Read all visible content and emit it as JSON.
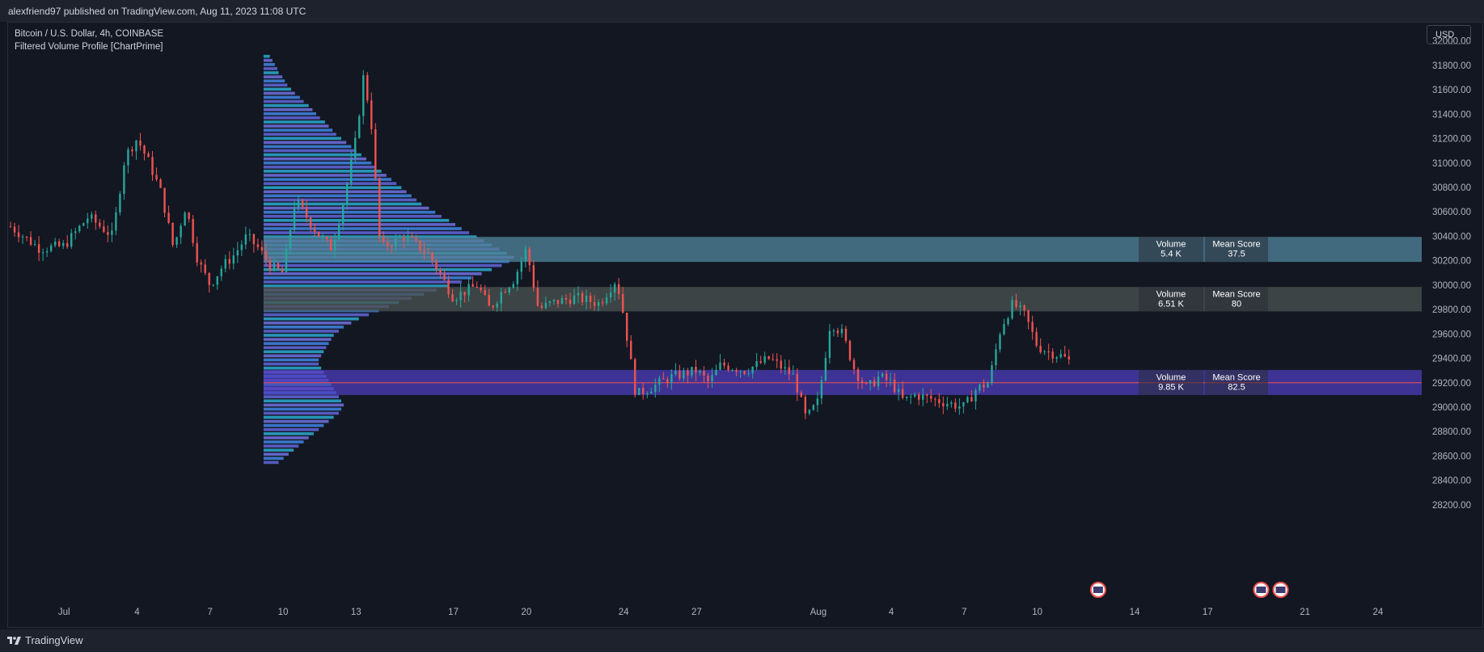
{
  "header": {
    "published_text": "alexfriend97 published on TradingView.com, Aug 11, 2023 11:08 UTC"
  },
  "legend": {
    "symbol_line": "Bitcoin / U.S. Dollar, 4h, COINBASE",
    "indicator_line": "Filtered Volume Profile [ChartPrime]"
  },
  "currency_button": "USD",
  "footer": {
    "brand": "TradingView",
    "logo_icon": "tradingview-logo-icon"
  },
  "colors": {
    "up": "#26a69a",
    "down": "#ef5350",
    "background": "#131722",
    "zone_top": "#4e8198",
    "zone_mid": "#49514f",
    "zone_low": "#4f3ec0",
    "poc_line": "#ef5350"
  },
  "chart_data": {
    "type": "candlestick",
    "title": "Bitcoin / U.S. Dollar, 4h, COINBASE",
    "indicator": "Filtered Volume Profile [ChartPrime]",
    "ylim": [
      28100,
      32150
    ],
    "y_ticks": [
      32000,
      31800,
      31600,
      31400,
      31200,
      31000,
      30800,
      30600,
      30400,
      30200,
      30000,
      29800,
      29600,
      29400,
      29200,
      29000,
      28800,
      28600,
      28400,
      28200
    ],
    "y_tick_labels": [
      "32000.00",
      "31800.00",
      "31600.00",
      "31400.00",
      "31200.00",
      "31000.00",
      "30800.00",
      "30600.00",
      "30400.00",
      "30200.00",
      "30000.00",
      "29800.00",
      "29600.00",
      "29400.00",
      "29200.00",
      "29000.00",
      "28800.00",
      "28600.00",
      "28400.00",
      "28200.00"
    ],
    "x_ticks": [
      {
        "day": 1,
        "label": "Jul"
      },
      {
        "day": 4,
        "label": "4"
      },
      {
        "day": 7,
        "label": "7"
      },
      {
        "day": 10,
        "label": "10"
      },
      {
        "day": 13,
        "label": "13"
      },
      {
        "day": 17,
        "label": "17"
      },
      {
        "day": 20,
        "label": "20"
      },
      {
        "day": 24,
        "label": "24"
      },
      {
        "day": 27,
        "label": "27"
      },
      {
        "day": 32,
        "label": "Aug"
      },
      {
        "day": 35,
        "label": "4"
      },
      {
        "day": 38,
        "label": "7"
      },
      {
        "day": 41,
        "label": "10"
      },
      {
        "day": 45,
        "label": "14"
      },
      {
        "day": 48,
        "label": "17"
      },
      {
        "day": 52,
        "label": "21"
      },
      {
        "day": 55,
        "label": "24"
      }
    ],
    "xlim_days": [
      -1.3,
      56.8
    ],
    "key_closes": [
      [
        -1.2,
        30480
      ],
      [
        0,
        30300
      ],
      [
        1,
        30320
      ],
      [
        2,
        30560
      ],
      [
        3,
        30400
      ],
      [
        3.5,
        31050
      ],
      [
        4,
        31200
      ],
      [
        4.5,
        31000
      ],
      [
        5,
        30750
      ],
      [
        5.5,
        30300
      ],
      [
        6,
        30650
      ],
      [
        6.5,
        30200
      ],
      [
        7,
        30000
      ],
      [
        7.5,
        30150
      ],
      [
        8,
        30250
      ],
      [
        8.5,
        30400
      ],
      [
        9,
        30300
      ],
      [
        9.5,
        30150
      ],
      [
        10,
        30100
      ],
      [
        10.5,
        30700
      ],
      [
        11,
        30550
      ],
      [
        11.5,
        30400
      ],
      [
        12,
        30300
      ],
      [
        12.5,
        30700
      ],
      [
        13,
        31200
      ],
      [
        13.3,
        31700
      ],
      [
        13.6,
        31400
      ],
      [
        14,
        30300
      ],
      [
        14.5,
        30350
      ],
      [
        15,
        30400
      ],
      [
        16,
        30250
      ],
      [
        17,
        29900
      ],
      [
        18,
        30000
      ],
      [
        18.5,
        29800
      ],
      [
        19,
        29950
      ],
      [
        19.5,
        30050
      ],
      [
        20,
        30300
      ],
      [
        20.5,
        29800
      ],
      [
        21,
        29850
      ],
      [
        22,
        29900
      ],
      [
        23,
        29850
      ],
      [
        23.7,
        30050
      ],
      [
        24,
        29750
      ],
      [
        24.5,
        29100
      ],
      [
        25,
        29150
      ],
      [
        26,
        29250
      ],
      [
        27,
        29300
      ],
      [
        27.5,
        29200
      ],
      [
        28,
        29350
      ],
      [
        29,
        29300
      ],
      [
        30,
        29400
      ],
      [
        31,
        29250
      ],
      [
        31.5,
        28900
      ],
      [
        32,
        29050
      ],
      [
        32.5,
        29700
      ],
      [
        33,
        29600
      ],
      [
        33.5,
        29300
      ],
      [
        34,
        29150
      ],
      [
        34.5,
        29250
      ],
      [
        35,
        29200
      ],
      [
        35.5,
        29050
      ],
      [
        36,
        29100
      ],
      [
        37,
        29050
      ],
      [
        38,
        29000
      ],
      [
        38.5,
        29150
      ],
      [
        39,
        29200
      ],
      [
        39.5,
        29650
      ],
      [
        40,
        29850
      ],
      [
        40.5,
        29750
      ],
      [
        41,
        29500
      ],
      [
        41.5,
        29450
      ],
      [
        42,
        29420
      ],
      [
        42.3,
        29380
      ]
    ],
    "volume_profile": {
      "price_low": 28530,
      "price_high": 31890,
      "rows": 100,
      "values": [
        2.5,
        3.5,
        4.5,
        5.5,
        6,
        7.5,
        8.5,
        9.5,
        11,
        12.5,
        14.5,
        16,
        18,
        19.5,
        21,
        22.5,
        24.5,
        26,
        27.5,
        29,
        31,
        33,
        35,
        37,
        39,
        41,
        43,
        45,
        47,
        49,
        51,
        53,
        55,
        57,
        59,
        61,
        63,
        66,
        68.5,
        71,
        74,
        76.5,
        79,
        82,
        85,
        88,
        91,
        94,
        97,
        100,
        98,
        95,
        91,
        87,
        83,
        79,
        74,
        69,
        64,
        59,
        54,
        50,
        46,
        42,
        38,
        35,
        32,
        30,
        28,
        27,
        26,
        25,
        24,
        23,
        22,
        22,
        23,
        24,
        25,
        26,
        27,
        28,
        29,
        30,
        31,
        32,
        31,
        30,
        28,
        26,
        24,
        22,
        20,
        18,
        16,
        14,
        12,
        10,
        8,
        6
      ],
      "colors": [
        "#2ba2c7",
        "#6b6dd6",
        "#3e7fd9",
        "#5d63cf"
      ]
    },
    "zones": [
      {
        "name": "top-zone",
        "price_top": 30395,
        "price_bottom": 30190,
        "volume": "5.4 K",
        "mean_score": "37.5"
      },
      {
        "name": "mid-zone",
        "price_top": 29985,
        "price_bottom": 29785,
        "volume": "6.51 K",
        "mean_score": "80"
      },
      {
        "name": "low-zone",
        "price_top": 29305,
        "price_bottom": 29100,
        "volume": "9.85 K",
        "mean_score": "82.5"
      }
    ],
    "poc_price": 29200,
    "zone_label_volume": "Volume",
    "zone_label_score": "Mean Score",
    "events": [
      {
        "day": 43.5,
        "icon": "us-flag-icon"
      },
      {
        "day": 50.2,
        "icon": "us-flag-icon"
      },
      {
        "day": 51,
        "icon": "us-flag-icon"
      }
    ]
  }
}
